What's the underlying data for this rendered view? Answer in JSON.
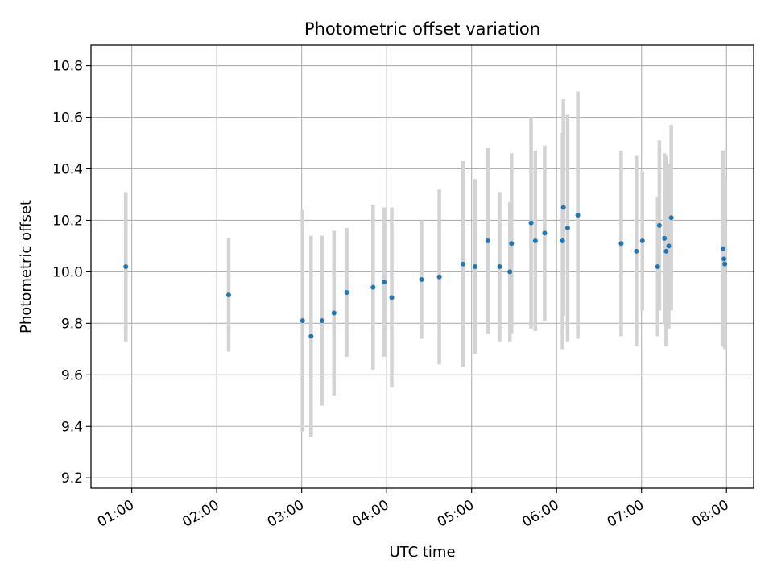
{
  "chart_data": {
    "type": "scatter",
    "title": "Photometric offset variation",
    "xlabel": "UTC time",
    "ylabel": "Photometric offset",
    "x_unit": "hours (UTC)",
    "xlim": [
      0.52,
      8.32
    ],
    "ylim": [
      9.16,
      10.88
    ],
    "x_ticks": [
      {
        "value": 1,
        "label": "01:00"
      },
      {
        "value": 2,
        "label": "02:00"
      },
      {
        "value": 3,
        "label": "03:00"
      },
      {
        "value": 4,
        "label": "04:00"
      },
      {
        "value": 5,
        "label": "05:00"
      },
      {
        "value": 6,
        "label": "06:00"
      },
      {
        "value": 7,
        "label": "07:00"
      },
      {
        "value": 8,
        "label": "08:00"
      }
    ],
    "y_ticks": [
      {
        "value": 9.2,
        "label": "9.2"
      },
      {
        "value": 9.4,
        "label": "9.4"
      },
      {
        "value": 9.6,
        "label": "9.6"
      },
      {
        "value": 9.8,
        "label": "9.8"
      },
      {
        "value": 10.0,
        "label": "10.0"
      },
      {
        "value": 10.2,
        "label": "10.2"
      },
      {
        "value": 10.4,
        "label": "10.4"
      },
      {
        "value": 10.6,
        "label": "10.6"
      },
      {
        "value": 10.8,
        "label": "10.8"
      }
    ],
    "grid": true,
    "marker_color": "#1f77b4",
    "errorbar_color": "#d3d3d3",
    "points": [
      {
        "x": 0.93,
        "y": 10.02,
        "err": 0.29
      },
      {
        "x": 2.14,
        "y": 9.91,
        "err": 0.22
      },
      {
        "x": 3.01,
        "y": 9.81,
        "err": 0.43
      },
      {
        "x": 3.11,
        "y": 9.75,
        "err": 0.39
      },
      {
        "x": 3.24,
        "y": 9.81,
        "err": 0.33
      },
      {
        "x": 3.38,
        "y": 9.84,
        "err": 0.32
      },
      {
        "x": 3.53,
        "y": 9.92,
        "err": 0.25
      },
      {
        "x": 3.84,
        "y": 9.94,
        "err": 0.32
      },
      {
        "x": 3.97,
        "y": 9.96,
        "err": 0.29
      },
      {
        "x": 4.06,
        "y": 9.9,
        "err": 0.35
      },
      {
        "x": 4.41,
        "y": 9.97,
        "err": 0.23
      },
      {
        "x": 4.62,
        "y": 9.98,
        "err": 0.34
      },
      {
        "x": 4.9,
        "y": 10.03,
        "err": 0.4
      },
      {
        "x": 5.04,
        "y": 10.02,
        "err": 0.34
      },
      {
        "x": 5.19,
        "y": 10.12,
        "err": 0.36
      },
      {
        "x": 5.33,
        "y": 10.02,
        "err": 0.29
      },
      {
        "x": 5.45,
        "y": 10.0,
        "err": 0.27
      },
      {
        "x": 5.47,
        "y": 10.11,
        "err": 0.35
      },
      {
        "x": 5.7,
        "y": 10.19,
        "err": 0.41
      },
      {
        "x": 5.75,
        "y": 10.12,
        "err": 0.35
      },
      {
        "x": 5.86,
        "y": 10.15,
        "err": 0.34
      },
      {
        "x": 6.07,
        "y": 10.12,
        "err": 0.42
      },
      {
        "x": 6.08,
        "y": 10.25,
        "err": 0.42
      },
      {
        "x": 6.13,
        "y": 10.17,
        "err": 0.44
      },
      {
        "x": 6.25,
        "y": 10.22,
        "err": 0.48
      },
      {
        "x": 6.76,
        "y": 10.11,
        "err": 0.36
      },
      {
        "x": 6.94,
        "y": 10.08,
        "err": 0.37
      },
      {
        "x": 7.01,
        "y": 10.12,
        "err": 0.27
      },
      {
        "x": 7.19,
        "y": 10.02,
        "err": 0.27
      },
      {
        "x": 7.21,
        "y": 10.18,
        "err": 0.33
      },
      {
        "x": 7.27,
        "y": 10.13,
        "err": 0.33
      },
      {
        "x": 7.29,
        "y": 10.08,
        "err": 0.37
      },
      {
        "x": 7.32,
        "y": 10.1,
        "err": 0.32
      },
      {
        "x": 7.35,
        "y": 10.21,
        "err": 0.36
      },
      {
        "x": 7.96,
        "y": 10.09,
        "err": 0.38
      },
      {
        "x": 7.97,
        "y": 10.05,
        "err": 0.32
      },
      {
        "x": 7.98,
        "y": 10.03,
        "err": 0.33
      }
    ]
  }
}
